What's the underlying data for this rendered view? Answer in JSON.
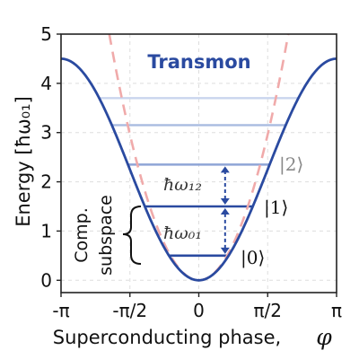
{
  "chart_data": {
    "type": "line",
    "title": "Transmon",
    "xlabel": "Superconducting phase,",
    "xlabel_symbol": "φ",
    "ylabel": "Energy [ħω₀₁]",
    "xlim": [
      -3.14159,
      3.14159
    ],
    "ylim": [
      -0.25,
      5
    ],
    "x_ticks": [
      "-π",
      "-π/2",
      "0",
      "π/2",
      "π"
    ],
    "y_ticks": [
      "0",
      "1",
      "2",
      "3",
      "4",
      "5"
    ],
    "grid": true,
    "colors": {
      "potential": "#2a4aa0",
      "harmonic": "#f0aaaa",
      "level_0": "#2a4aa0",
      "level_1": "#2a4aa0",
      "level_2": "#8fa5d6",
      "level_3": "#a9bbe0",
      "level_4": "#c9d5ee",
      "arrow": "#2a4aa0",
      "label_2": "#888888"
    },
    "series": [
      {
        "style": "solid",
        "formula": "2.25*(1-cos(phi))"
      },
      {
        "style": "dashed",
        "formula": "1.2*phi^2"
      }
    ],
    "levels": [
      0.5,
      1.5,
      2.35,
      3.15,
      3.7
    ],
    "state_labels": [
      "|0⟩",
      "|1⟩",
      "|2⟩"
    ],
    "gap_labels": [
      "ħω₀₁",
      "ħω₁₂"
    ],
    "subspace_label": [
      "Comp.",
      "subspace"
    ]
  }
}
